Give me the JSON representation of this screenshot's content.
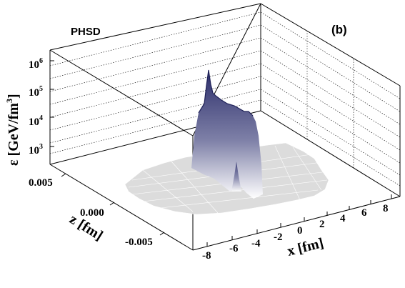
{
  "chart_data": {
    "type": "surface3d",
    "model_label": "PHSD",
    "panel_label": "(b)",
    "zlabel": {
      "symbol": "ε",
      "unit": "[GeV/fm",
      "unit_sup": "3",
      "unit_close": "]"
    },
    "zscale": "log",
    "zticks": [
      {
        "base": "10",
        "exp": "3"
      },
      {
        "base": "10",
        "exp": "4"
      },
      {
        "base": "10",
        "exp": "5"
      },
      {
        "base": "10",
        "exp": "6"
      }
    ],
    "xlabel": "x [fm]",
    "ylabel": "z [fm]",
    "xticks": [
      "-8",
      "-6",
      "-4",
      "-2",
      "0",
      "2",
      "4",
      "6",
      "8"
    ],
    "yticks": [
      "0.005",
      "0.000",
      "-0.005"
    ],
    "peak": {
      "x_range_fm": [
        -2,
        2
      ],
      "energy_density_max_GeV_fm3": 500000,
      "plateau_GeV_fm3": 40000,
      "side_peak_GeV_fm3": 1000
    },
    "colors": {
      "surface_top": "#2b2d6a",
      "surface_bottom": "#ffffff",
      "base_plane": "#d9d9d9"
    },
    "grid": true
  }
}
